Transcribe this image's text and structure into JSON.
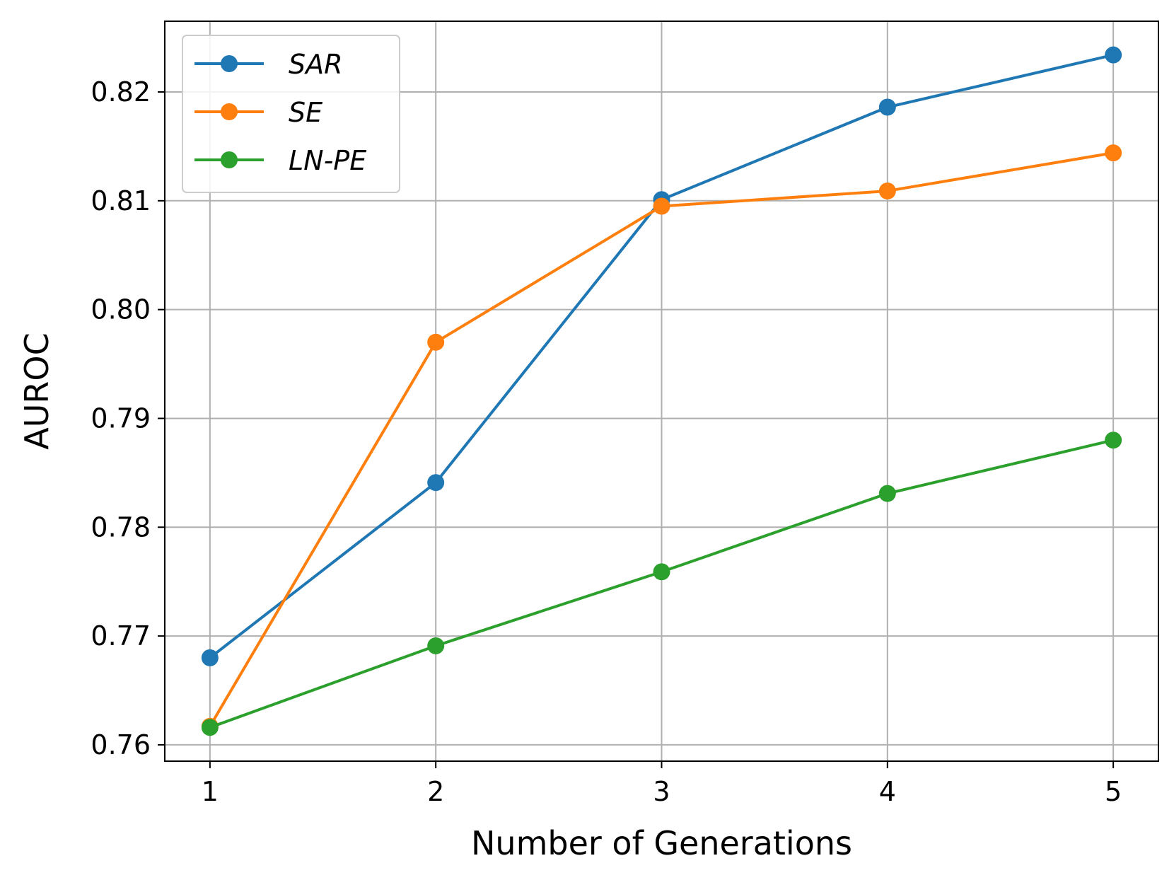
{
  "chart_data": {
    "type": "line",
    "title": "",
    "xlabel": "Number of Generations",
    "ylabel": "AUROC",
    "x": [
      1,
      2,
      3,
      4,
      5
    ],
    "xticks": [
      "1",
      "2",
      "3",
      "4",
      "5"
    ],
    "yticks": [
      "0.76",
      "0.77",
      "0.78",
      "0.79",
      "0.80",
      "0.81",
      "0.82"
    ],
    "ytick_values": [
      0.76,
      0.77,
      0.78,
      0.79,
      0.8,
      0.81,
      0.82
    ],
    "xlim": [
      0.8,
      5.2
    ],
    "ylim": [
      0.7585,
      0.8265
    ],
    "grid": true,
    "legend_position": "top-left",
    "series": [
      {
        "name": "SAR",
        "color": "#1f77b4",
        "values": [
          0.768,
          0.7841,
          0.8101,
          0.8186,
          0.8234
        ]
      },
      {
        "name": "SE",
        "color": "#ff7f0e",
        "values": [
          0.7617,
          0.797,
          0.8095,
          0.8109,
          0.8144
        ]
      },
      {
        "name": "LN-PE",
        "color": "#2ca02c",
        "values": [
          0.7616,
          0.7691,
          0.7759,
          0.7831,
          0.788
        ]
      }
    ]
  }
}
